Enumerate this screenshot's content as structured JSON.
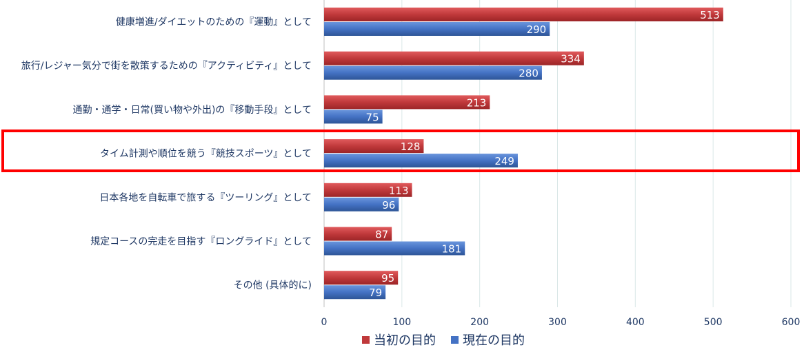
{
  "chart_data": {
    "type": "bar",
    "orientation": "horizontal",
    "categories": [
      "健康増進/ダイエットのための『運動』として",
      "旅行/レジャー気分で街を散策するための『アクティビティ』として",
      "通勤・通学・日常(買い物や外出)の『移動手段』として",
      "タイム計測や順位を競う『競技スポーツ』として",
      "日本各地を自転車で旅する『ツーリング』として",
      "規定コースの完走を目指す『ロングライド』として",
      "その他 (具体的に)"
    ],
    "series": [
      {
        "name": "当初の目的",
        "color": "#c0393b",
        "values": [
          513,
          334,
          213,
          128,
          113,
          87,
          95
        ]
      },
      {
        "name": "現在の目的",
        "color": "#4472c4",
        "values": [
          290,
          280,
          75,
          249,
          96,
          181,
          79
        ]
      }
    ],
    "xlim": [
      0,
      600
    ],
    "xticks": [
      "0",
      "100",
      "200",
      "300",
      "400",
      "500",
      "600"
    ],
    "grid": true,
    "legend_position": "bottom",
    "highlighted_category": 3
  }
}
